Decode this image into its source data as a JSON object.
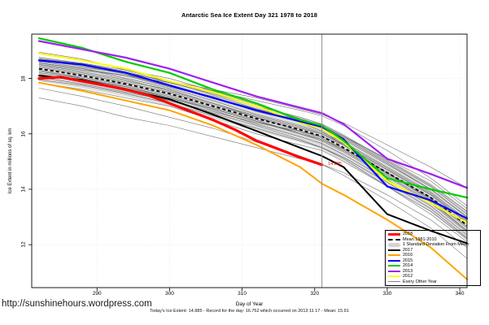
{
  "page": {
    "url": "http://sunshinehours.wordpress.com"
  },
  "chart_data": {
    "type": "line",
    "title": "Antarctic Sea Ice Extent Day 321 1978 to 2018",
    "xlabel": "Day of Year",
    "ylabel": "Ice Extent in millions of sq. km",
    "caption": "Today's Ice Extent: 14.885  - Record for the day: 16.752 which occurred on 2013 11 17  - Mean: 15.91",
    "xlim": [
      281,
      341
    ],
    "ylim": [
      10.45,
      19.6
    ],
    "x_ticks": [
      290,
      300,
      310,
      320,
      330,
      340
    ],
    "y_ticks": [
      12,
      14,
      16,
      18
    ],
    "grid": "dotted",
    "marker": {
      "day": 321,
      "color": "#8c8c8c"
    },
    "annotation": {
      "text": "14.885",
      "day": 321.5,
      "value": 14.9,
      "color": "#ff0000"
    },
    "x": [
      282,
      288,
      294,
      300,
      306,
      312,
      318,
      321,
      324,
      330,
      336,
      341
    ],
    "mean_series": {
      "name": "Mean 1981-2010",
      "color": "#000000",
      "dashed": true,
      "values": [
        18.35,
        18.1,
        17.8,
        17.45,
        17.0,
        16.55,
        16.15,
        15.91,
        15.5,
        14.6,
        13.7,
        12.7
      ]
    },
    "sd_band": {
      "name": "1 Standard Deviation From Mean",
      "color": "#d9d9d9",
      "upper": [
        18.8,
        18.55,
        18.25,
        17.9,
        17.45,
        17.0,
        16.6,
        16.38,
        15.98,
        15.1,
        14.22,
        13.25
      ],
      "lower": [
        17.9,
        17.65,
        17.35,
        17.0,
        16.55,
        16.1,
        15.7,
        15.44,
        15.02,
        14.1,
        13.18,
        12.15
      ]
    },
    "series": [
      {
        "name": "2012",
        "color": "#ffff00",
        "width": 2.0,
        "values": [
          18.9,
          18.65,
          18.35,
          17.9,
          17.5,
          17.0,
          16.4,
          16.2,
          15.7,
          14.3,
          13.5,
          12.8
        ]
      },
      {
        "name": "2015",
        "color": "#0000ff",
        "width": 2.2,
        "values": [
          18.65,
          18.5,
          18.2,
          17.75,
          17.3,
          16.85,
          16.45,
          16.25,
          15.8,
          14.1,
          13.6,
          12.95
        ]
      },
      {
        "name": "2014",
        "color": "#00cc00",
        "width": 2.2,
        "values": [
          19.45,
          19.1,
          18.6,
          18.2,
          17.6,
          17.1,
          16.5,
          16.3,
          15.75,
          14.4,
          14.0,
          13.7
        ]
      },
      {
        "name": "2013",
        "color": "#a020f0",
        "width": 2.2,
        "values": [
          19.35,
          19.05,
          18.75,
          18.35,
          17.85,
          17.35,
          16.95,
          16.75,
          16.35,
          15.1,
          14.55,
          14.05
        ]
      },
      {
        "name": "2016",
        "color": "#ffa500",
        "width": 2.0,
        "values": [
          17.85,
          17.55,
          17.2,
          16.85,
          16.3,
          15.6,
          14.8,
          14.2,
          13.8,
          12.9,
          11.9,
          10.75
        ]
      },
      {
        "name": "2017",
        "color": "#000000",
        "width": 2.0,
        "values": [
          18.1,
          17.95,
          17.6,
          17.25,
          16.7,
          16.1,
          15.5,
          15.2,
          14.8,
          13.1,
          12.5,
          12.05
        ]
      },
      {
        "name": "2018",
        "color": "#ff0000",
        "width": 3.2,
        "x": [
          282,
          285,
          288,
          291,
          294,
          297,
          300,
          303,
          306,
          309,
          312,
          315,
          318,
          321
        ],
        "values": [
          18.0,
          18.05,
          17.9,
          17.75,
          17.6,
          17.4,
          17.1,
          16.8,
          16.5,
          16.15,
          15.75,
          15.45,
          15.15,
          14.885
        ]
      }
    ],
    "other_years": {
      "name": "Every Other Year",
      "color": "#595959",
      "width": 0.6,
      "lines": [
        [
          18.7,
          18.5,
          18.2,
          17.9,
          17.4,
          16.9,
          16.5,
          16.3,
          15.9,
          15.0,
          14.1,
          13.1
        ],
        [
          18.5,
          18.3,
          18.1,
          17.7,
          17.3,
          16.9,
          16.5,
          16.3,
          15.9,
          15.1,
          14.3,
          13.3
        ],
        [
          18.05,
          17.8,
          17.5,
          17.2,
          16.8,
          16.4,
          16.1,
          15.9,
          15.6,
          14.7,
          13.8,
          12.8
        ],
        [
          18.95,
          18.7,
          18.3,
          17.9,
          17.5,
          17.0,
          16.4,
          16.1,
          15.6,
          14.6,
          13.6,
          12.5
        ],
        [
          17.85,
          17.6,
          17.3,
          17.0,
          16.5,
          16.0,
          15.6,
          15.4,
          15.0,
          14.1,
          13.2,
          12.2
        ],
        [
          18.65,
          18.45,
          18.15,
          17.7,
          17.35,
          16.8,
          16.45,
          16.2,
          15.8,
          14.9,
          14.0,
          13.0
        ],
        [
          18.15,
          17.9,
          17.55,
          17.2,
          16.75,
          16.3,
          15.8,
          15.5,
          15.1,
          14.1,
          13.1,
          12.1
        ],
        [
          18.45,
          18.2,
          17.9,
          17.6,
          17.1,
          16.6,
          16.2,
          16.0,
          15.6,
          14.7,
          13.8,
          12.8
        ],
        [
          17.65,
          17.35,
          17.0,
          16.6,
          16.2,
          15.7,
          15.2,
          14.9,
          14.5,
          13.6,
          12.6,
          11.5
        ],
        [
          18.6,
          18.4,
          18.2,
          17.9,
          17.6,
          17.3,
          16.9,
          16.7,
          16.4,
          15.6,
          14.8,
          14.05
        ],
        [
          17.3,
          17.0,
          16.6,
          16.3,
          15.9,
          15.5,
          15.1,
          14.9,
          14.6,
          13.8,
          12.9,
          11.9
        ],
        [
          18.25,
          18.05,
          17.75,
          17.4,
          16.95,
          16.5,
          16.0,
          15.75,
          15.35,
          14.45,
          13.5,
          12.45
        ],
        [
          18.55,
          18.35,
          18.0,
          17.65,
          17.2,
          16.7,
          16.3,
          16.05,
          15.7,
          14.8,
          13.9,
          12.9
        ],
        [
          18.4,
          18.15,
          17.85,
          17.5,
          17.05,
          16.6,
          16.1,
          15.85,
          15.45,
          14.55,
          13.65,
          12.6
        ],
        [
          18.1,
          17.95,
          17.7,
          17.35,
          16.9,
          16.45,
          16.0,
          15.8,
          15.4,
          14.5,
          13.55,
          12.5
        ],
        [
          18.75,
          18.55,
          18.25,
          17.85,
          17.45,
          17.0,
          16.6,
          16.35,
          15.95,
          15.05,
          14.15,
          13.2
        ],
        [
          18.3,
          18.0,
          17.7,
          17.3,
          16.85,
          16.35,
          15.9,
          15.65,
          15.25,
          14.35,
          13.4,
          12.35
        ],
        [
          18.2,
          18.0,
          17.65,
          17.3,
          16.9,
          16.45,
          16.05,
          15.8,
          15.45,
          14.6,
          13.7,
          12.65
        ],
        [
          18.5,
          18.25,
          17.95,
          17.55,
          17.1,
          16.65,
          16.25,
          16.0,
          15.65,
          14.75,
          13.85,
          12.85
        ],
        [
          17.95,
          17.75,
          17.45,
          17.1,
          16.65,
          16.2,
          15.75,
          15.5,
          15.15,
          14.25,
          13.3,
          12.25
        ],
        [
          18.7,
          18.55,
          18.3,
          18.0,
          17.55,
          17.05,
          16.55,
          16.3,
          15.85,
          14.95,
          14.0,
          13.0
        ],
        [
          18.55,
          18.35,
          18.1,
          17.85,
          17.55,
          17.2,
          16.85,
          16.65,
          16.3,
          15.4,
          14.4,
          13.4
        ]
      ]
    },
    "legend": {
      "position": "bottom-right",
      "entries": [
        {
          "label": "2018",
          "color": "#ff0000",
          "type": "thick"
        },
        {
          "label": "Mean 1981-2010",
          "color": "#000000",
          "type": "dashed"
        },
        {
          "label": "1 Standard Deviation From Mean",
          "color": "#d3d3d3",
          "type": "band"
        },
        {
          "label": "2017",
          "color": "#000000",
          "type": "line"
        },
        {
          "label": "2016",
          "color": "#ffa500",
          "type": "line"
        },
        {
          "label": "2015",
          "color": "#0000ff",
          "type": "line"
        },
        {
          "label": "2014",
          "color": "#00cc00",
          "type": "line"
        },
        {
          "label": "2013",
          "color": "#a020f0",
          "type": "line"
        },
        {
          "label": "2012",
          "color": "#ffff00",
          "type": "line"
        },
        {
          "label": "Every Other Year",
          "color": "#808080",
          "type": "thin"
        }
      ]
    }
  }
}
